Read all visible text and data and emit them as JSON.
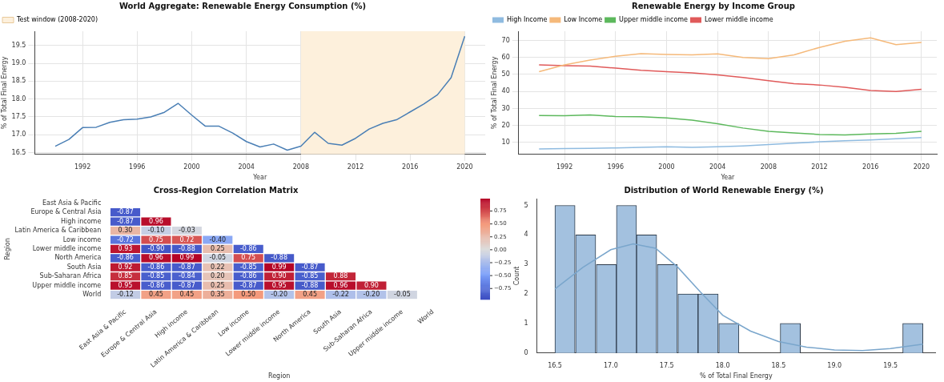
{
  "chart_data": [
    {
      "type": "line",
      "title": "World Aggregate: Renewable Energy Consumption (%)",
      "xlabel": "Year",
      "ylabel": "% of Total Final Energy",
      "x": [
        1990,
        1991,
        1992,
        1993,
        1994,
        1995,
        1996,
        1997,
        1998,
        1999,
        2000,
        2001,
        2002,
        2003,
        2004,
        2005,
        2006,
        2007,
        2008,
        2009,
        2010,
        2011,
        2012,
        2013,
        2014,
        2015,
        2016,
        2017,
        2018,
        2019,
        2020
      ],
      "values": [
        16.68,
        16.87,
        17.2,
        17.21,
        17.35,
        17.42,
        17.44,
        17.5,
        17.63,
        17.88,
        17.55,
        17.24,
        17.24,
        17.05,
        16.81,
        16.66,
        16.74,
        16.57,
        16.68,
        17.07,
        16.76,
        16.71,
        16.9,
        17.16,
        17.32,
        17.42,
        17.64,
        17.86,
        18.12,
        18.6,
        19.76
      ],
      "color": "#4a7fb5",
      "xlim": [
        1988.5,
        2021.5
      ],
      "xticks": [
        1992,
        1996,
        2000,
        2004,
        2008,
        2012,
        2016,
        2020
      ],
      "ylim": [
        16.45,
        19.9
      ],
      "yticks": [
        16.5,
        {
          "value": 17,
          "label": "17.0"
        },
        17.5,
        {
          "value": 18,
          "label": "18.0"
        },
        18.5,
        {
          "value": 19,
          "label": "19.0"
        },
        19.5
      ],
      "bands": [
        {
          "axis": "x",
          "from": 2008,
          "to": 2020,
          "label": "Test window (2008-2020)",
          "color": "#fdf0dc"
        }
      ],
      "grid": true,
      "legend": "top left"
    },
    {
      "type": "line",
      "title": "Renewable Energy by Income Group",
      "xlabel": "Year",
      "ylabel": "% of Total Final Energy",
      "x": [
        1990,
        1992,
        1994,
        1996,
        1998,
        2000,
        2002,
        2004,
        2006,
        2008,
        2010,
        2012,
        2014,
        2016,
        2018,
        2020
      ],
      "series": [
        {
          "name": "High Income",
          "color": "#8fbbe0",
          "values": [
            6.2,
            6.4,
            6.6,
            6.8,
            7.1,
            7.5,
            7.2,
            7.5,
            8.0,
            8.8,
            9.6,
            10.4,
            11.0,
            11.5,
            12.2,
            12.9
          ]
        },
        {
          "name": "Low Income",
          "color": "#f5b97a",
          "values": [
            51.6,
            55.6,
            58.5,
            60.7,
            62.2,
            61.8,
            61.5,
            62.1,
            60,
            59.3,
            61.5,
            65.9,
            69.5,
            71.5,
            67.5,
            68.8
          ]
        },
        {
          "name": "Upper middle income",
          "color": "#5cb85c",
          "values": [
            25.9,
            25.7,
            26.2,
            25.3,
            25.1,
            24.4,
            23.2,
            21,
            18.5,
            16.6,
            15.6,
            14.7,
            14.4,
            15,
            15.4,
            16.6
          ]
        },
        {
          "name": "Lower middle income",
          "color": "#e05a5a",
          "values": [
            55.6,
            55.1,
            54.9,
            53.7,
            52.4,
            51.6,
            50.9,
            49.7,
            48.2,
            46.3,
            44.6,
            43.8,
            42.4,
            40.6,
            40,
            41.3
          ]
        }
      ],
      "xlim": [
        1988.4,
        2021.2
      ],
      "xticks": [
        1992,
        1996,
        2000,
        2004,
        2008,
        2012,
        2016,
        2020
      ],
      "ylim": [
        3,
        75.4
      ],
      "yticks": [
        10,
        20,
        30,
        40,
        50,
        60,
        70
      ],
      "grid": true,
      "legend": "top left"
    },
    {
      "type": "heatmap",
      "title": "Cross-Region Correlation Matrix",
      "xlabel": "Region",
      "ylabel": "Region",
      "categories": [
        "East Asia & Pacific",
        "Europe & Central Asia",
        "High income",
        "Latin America & Caribbean",
        "Low income",
        "Lower middle income",
        "North America",
        "South Asia",
        "Sub-Saharan Africa",
        "Upper middle income",
        "World"
      ],
      "y_categories": [
        "East Asia & Pacific",
        "Europe & Central Asia",
        "High income",
        "Latin America & Caribbean",
        "Low income",
        "Lower middle income",
        "North America",
        "South Asia",
        "Sub-Saharan Africa",
        "Upper middle income",
        "World"
      ],
      "cells": [
        [
          null,
          null,
          null,
          null,
          null,
          null,
          null,
          null,
          null,
          null,
          null
        ],
        [
          -0.87,
          null,
          null,
          null,
          null,
          null,
          null,
          null,
          null,
          null,
          null
        ],
        [
          -0.87,
          0.96,
          null,
          null,
          null,
          null,
          null,
          null,
          null,
          null,
          null
        ],
        [
          0.3,
          -0.1,
          -0.03,
          null,
          null,
          null,
          null,
          null,
          null,
          null,
          null
        ],
        [
          -0.72,
          0.75,
          0.72,
          -0.4,
          null,
          null,
          null,
          null,
          null,
          null,
          null
        ],
        [
          0.93,
          -0.9,
          -0.88,
          0.25,
          -0.86,
          null,
          null,
          null,
          null,
          null,
          null
        ],
        [
          -0.86,
          0.96,
          0.99,
          -0.05,
          0.75,
          -0.88,
          null,
          null,
          null,
          null,
          null
        ],
        [
          0.92,
          -0.86,
          -0.87,
          0.22,
          -0.85,
          0.99,
          -0.87,
          null,
          null,
          null,
          null
        ],
        [
          0.85,
          -0.85,
          -0.84,
          0.2,
          -0.86,
          0.9,
          -0.85,
          0.88,
          null,
          null,
          null
        ],
        [
          0.95,
          -0.86,
          -0.87,
          0.25,
          -0.87,
          0.95,
          -0.88,
          0.96,
          0.9,
          null,
          null
        ],
        [
          -0.12,
          0.45,
          0.45,
          0.35,
          0.5,
          -0.2,
          0.45,
          -0.22,
          -0.2,
          -0.05,
          null
        ]
      ],
      "cell_labels": [
        [
          null,
          null,
          null,
          null,
          null,
          null,
          null,
          null,
          null,
          null,
          null
        ],
        [
          "-0.87",
          null,
          null,
          null,
          null,
          null,
          null,
          null,
          null,
          null,
          null
        ],
        [
          "-0.87",
          "0.96",
          null,
          null,
          null,
          null,
          null,
          null,
          null,
          null,
          null
        ],
        [
          "0.30",
          "-0.10",
          "-0.03",
          null,
          null,
          null,
          null,
          null,
          null,
          null,
          null
        ],
        [
          "-0.72",
          "0.75",
          "0.72",
          "-0.40",
          null,
          null,
          null,
          null,
          null,
          null,
          null
        ],
        [
          "0.93",
          "-0.90",
          "-0.88",
          "0.25",
          "-0.86",
          null,
          null,
          null,
          null,
          null,
          null
        ],
        [
          "-0.86",
          "0.96",
          "0.99",
          "-0.05",
          "0.75",
          "-0.88",
          null,
          null,
          null,
          null,
          null
        ],
        [
          "0.92",
          "-0.86",
          "-0.87",
          "0.22",
          "-0.85",
          "0.99",
          "-0.87",
          null,
          null,
          null,
          null
        ],
        [
          "0.85",
          "-0.85",
          "-0.84",
          "0.20",
          "-0.86",
          "0.90",
          "-0.85",
          "0.88",
          null,
          null,
          null
        ],
        [
          "0.95",
          "-0.86",
          "-0.87",
          "0.25",
          "-0.87",
          "0.95",
          "-0.88",
          "0.96",
          "0.90",
          null,
          null
        ],
        [
          "-0.12",
          "0.45",
          "0.45",
          "0.35",
          "0.50",
          "-0.20",
          "0.45",
          "-0.22",
          "-0.20",
          "-0.05",
          null
        ]
      ],
      "clim": [
        -0.96,
        0.99
      ],
      "cticks": [
        {
          "value": -0.75,
          "label": "−0.75"
        },
        {
          "value": -0.5,
          "label": "−0.50"
        },
        {
          "value": -0.25,
          "label": "−0.25"
        },
        {
          "value": 0,
          "label": "0.00"
        },
        0.25,
        {
          "value": 0.5,
          "label": "0.50"
        },
        0.75
      ]
    },
    {
      "type": "histogram",
      "title": "Distribution of World Renewable Energy (%)",
      "xlabel": "% of Total Final Energy",
      "ylabel": "Count",
      "bins": [
        16.5,
        16.68,
        16.87,
        17.05,
        17.23,
        17.41,
        17.6,
        17.78,
        17.96,
        18.15,
        18.33,
        18.51,
        18.7,
        18.88,
        19.06,
        19.25,
        19.43,
        19.61,
        19.79
      ],
      "values": [
        5,
        4,
        3,
        5,
        4,
        3,
        2,
        2,
        1,
        0,
        0,
        1,
        0,
        0,
        0,
        0,
        0,
        1
      ],
      "color": "#a3c1df",
      "series": [
        {
          "type": "line",
          "color": "#7aa6cc",
          "x": [
            16.5,
            16.75,
            17.0,
            17.2,
            17.4,
            17.6,
            17.8,
            18.0,
            18.25,
            18.5,
            18.75,
            19.0,
            19.25,
            19.5,
            19.79
          ],
          "values": [
            2.17,
            2.9,
            3.5,
            3.7,
            3.55,
            2.9,
            2.07,
            1.28,
            0.74,
            0.39,
            0.2,
            0.1,
            0.08,
            0.15,
            0.3
          ]
        }
      ],
      "xlim": [
        16.34,
        19.9
      ],
      "xticks": [
        16.5,
        {
          "value": 17,
          "label": "17.0"
        },
        17.5,
        {
          "value": 18,
          "label": "18.0"
        },
        18.5,
        {
          "value": 19,
          "label": "19.0"
        },
        19.5
      ],
      "ylim": [
        0,
        5.23
      ],
      "yticks": [
        0,
        1,
        2,
        3,
        4,
        5
      ]
    }
  ]
}
